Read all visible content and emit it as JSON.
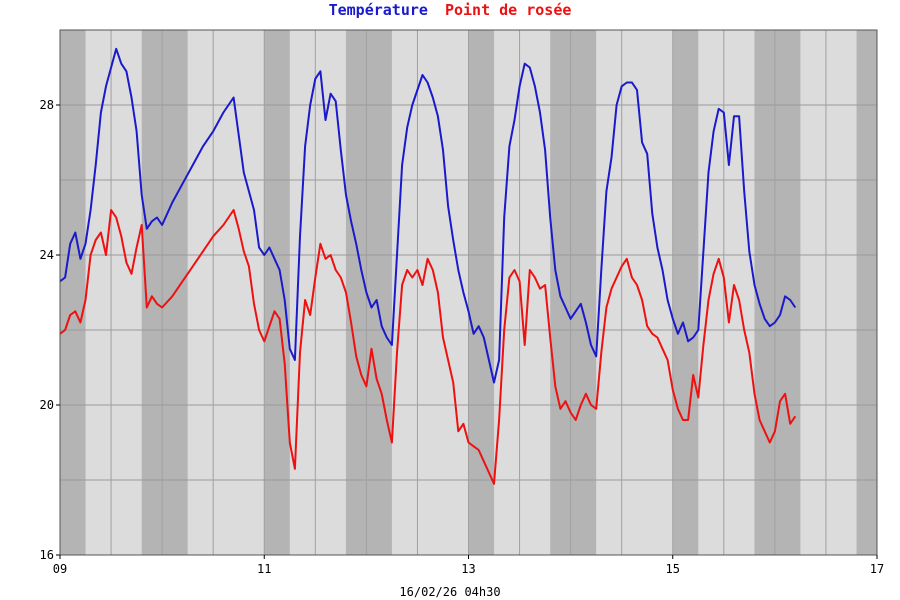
{
  "chart_data": {
    "type": "line",
    "title_parts": [
      {
        "text": "Température",
        "color": "#1a1acc"
      },
      {
        "text": "Point de rosée",
        "color": "#ee1111"
      }
    ],
    "footer": "16/02/26 04h30",
    "xlim": [
      9,
      17
    ],
    "ylim": [
      16,
      30
    ],
    "x_ticks": [
      {
        "value": 9,
        "label": "09"
      },
      {
        "value": 11,
        "label": "11"
      },
      {
        "value": 13,
        "label": "13"
      },
      {
        "value": 15,
        "label": "15"
      },
      {
        "value": 17,
        "label": "17"
      }
    ],
    "y_ticks": [
      {
        "value": 16,
        "label": "16"
      },
      {
        "value": 20,
        "label": "20"
      },
      {
        "value": 24,
        "label": "24"
      },
      {
        "value": 28,
        "label": "28"
      }
    ],
    "grid": true,
    "night_bands": [
      [
        9.0,
        9.25
      ],
      [
        9.8,
        10.25
      ],
      [
        11.0,
        11.25
      ],
      [
        11.8,
        12.25
      ],
      [
        13.0,
        13.25
      ],
      [
        13.8,
        14.25
      ],
      [
        15.0,
        15.25
      ],
      [
        15.8,
        16.25
      ],
      [
        16.8,
        17.0
      ]
    ],
    "series": [
      {
        "color": "#1a1acc",
        "points": [
          [
            9.0,
            23.3
          ],
          [
            9.05,
            23.4
          ],
          [
            9.1,
            24.3
          ],
          [
            9.15,
            24.6
          ],
          [
            9.2,
            23.9
          ],
          [
            9.25,
            24.3
          ],
          [
            9.3,
            25.2
          ],
          [
            9.35,
            26.4
          ],
          [
            9.4,
            27.8
          ],
          [
            9.45,
            28.5
          ],
          [
            9.5,
            29.0
          ],
          [
            9.55,
            29.5
          ],
          [
            9.6,
            29.1
          ],
          [
            9.65,
            28.9
          ],
          [
            9.7,
            28.2
          ],
          [
            9.75,
            27.3
          ],
          [
            9.8,
            25.6
          ],
          [
            9.85,
            24.7
          ],
          [
            9.9,
            24.9
          ],
          [
            9.95,
            25.0
          ],
          [
            10.0,
            24.8
          ],
          [
            10.1,
            25.4
          ],
          [
            10.2,
            25.9
          ],
          [
            10.3,
            26.4
          ],
          [
            10.4,
            26.9
          ],
          [
            10.5,
            27.3
          ],
          [
            10.6,
            27.8
          ],
          [
            10.7,
            28.2
          ],
          [
            10.75,
            27.2
          ],
          [
            10.8,
            26.2
          ],
          [
            10.85,
            25.7
          ],
          [
            10.9,
            25.2
          ],
          [
            10.95,
            24.2
          ],
          [
            11.0,
            24.0
          ],
          [
            11.05,
            24.2
          ],
          [
            11.1,
            23.9
          ],
          [
            11.15,
            23.6
          ],
          [
            11.2,
            22.8
          ],
          [
            11.25,
            21.5
          ],
          [
            11.3,
            21.2
          ],
          [
            11.35,
            24.5
          ],
          [
            11.4,
            26.9
          ],
          [
            11.45,
            28.0
          ],
          [
            11.5,
            28.7
          ],
          [
            11.55,
            28.9
          ],
          [
            11.6,
            27.6
          ],
          [
            11.65,
            28.3
          ],
          [
            11.7,
            28.1
          ],
          [
            11.75,
            26.8
          ],
          [
            11.8,
            25.6
          ],
          [
            11.85,
            24.9
          ],
          [
            11.9,
            24.3
          ],
          [
            11.95,
            23.6
          ],
          [
            12.0,
            23.0
          ],
          [
            12.05,
            22.6
          ],
          [
            12.1,
            22.8
          ],
          [
            12.15,
            22.1
          ],
          [
            12.2,
            21.8
          ],
          [
            12.25,
            21.6
          ],
          [
            12.3,
            24.0
          ],
          [
            12.35,
            26.4
          ],
          [
            12.4,
            27.4
          ],
          [
            12.45,
            28.0
          ],
          [
            12.5,
            28.4
          ],
          [
            12.55,
            28.8
          ],
          [
            12.6,
            28.6
          ],
          [
            12.65,
            28.2
          ],
          [
            12.7,
            27.7
          ],
          [
            12.75,
            26.8
          ],
          [
            12.8,
            25.3
          ],
          [
            12.85,
            24.4
          ],
          [
            12.9,
            23.6
          ],
          [
            12.95,
            23.0
          ],
          [
            13.0,
            22.5
          ],
          [
            13.05,
            21.9
          ],
          [
            13.1,
            22.1
          ],
          [
            13.15,
            21.8
          ],
          [
            13.2,
            21.2
          ],
          [
            13.25,
            20.6
          ],
          [
            13.3,
            21.2
          ],
          [
            13.35,
            25.0
          ],
          [
            13.4,
            26.9
          ],
          [
            13.45,
            27.6
          ],
          [
            13.5,
            28.5
          ],
          [
            13.55,
            29.1
          ],
          [
            13.6,
            29.0
          ],
          [
            13.65,
            28.5
          ],
          [
            13.7,
            27.8
          ],
          [
            13.75,
            26.8
          ],
          [
            13.8,
            25.0
          ],
          [
            13.85,
            23.6
          ],
          [
            13.9,
            22.9
          ],
          [
            13.95,
            22.6
          ],
          [
            14.0,
            22.3
          ],
          [
            14.05,
            22.5
          ],
          [
            14.1,
            22.7
          ],
          [
            14.15,
            22.2
          ],
          [
            14.2,
            21.6
          ],
          [
            14.25,
            21.3
          ],
          [
            14.3,
            23.6
          ],
          [
            14.35,
            25.7
          ],
          [
            14.4,
            26.6
          ],
          [
            14.45,
            28.0
          ],
          [
            14.5,
            28.5
          ],
          [
            14.55,
            28.6
          ],
          [
            14.6,
            28.6
          ],
          [
            14.65,
            28.4
          ],
          [
            14.7,
            27.0
          ],
          [
            14.75,
            26.7
          ],
          [
            14.8,
            25.1
          ],
          [
            14.85,
            24.2
          ],
          [
            14.9,
            23.6
          ],
          [
            14.95,
            22.8
          ],
          [
            15.0,
            22.3
          ],
          [
            15.05,
            21.9
          ],
          [
            15.1,
            22.2
          ],
          [
            15.15,
            21.7
          ],
          [
            15.2,
            21.8
          ],
          [
            15.25,
            22.0
          ],
          [
            15.3,
            24.1
          ],
          [
            15.35,
            26.2
          ],
          [
            15.4,
            27.3
          ],
          [
            15.45,
            27.9
          ],
          [
            15.5,
            27.8
          ],
          [
            15.55,
            26.4
          ],
          [
            15.6,
            27.7
          ],
          [
            15.65,
            27.7
          ],
          [
            15.7,
            25.7
          ],
          [
            15.75,
            24.1
          ],
          [
            15.8,
            23.2
          ],
          [
            15.85,
            22.7
          ],
          [
            15.9,
            22.3
          ],
          [
            15.95,
            22.1
          ],
          [
            16.0,
            22.2
          ],
          [
            16.05,
            22.4
          ],
          [
            16.1,
            22.9
          ],
          [
            16.15,
            22.8
          ],
          [
            16.2,
            22.6
          ]
        ]
      },
      {
        "color": "#ee1111",
        "points": [
          [
            9.0,
            21.9
          ],
          [
            9.05,
            22.0
          ],
          [
            9.1,
            22.4
          ],
          [
            9.15,
            22.5
          ],
          [
            9.2,
            22.2
          ],
          [
            9.25,
            22.8
          ],
          [
            9.3,
            24.0
          ],
          [
            9.35,
            24.4
          ],
          [
            9.4,
            24.6
          ],
          [
            9.45,
            24.0
          ],
          [
            9.5,
            25.2
          ],
          [
            9.55,
            25.0
          ],
          [
            9.6,
            24.5
          ],
          [
            9.65,
            23.8
          ],
          [
            9.7,
            23.5
          ],
          [
            9.75,
            24.2
          ],
          [
            9.8,
            24.8
          ],
          [
            9.85,
            22.6
          ],
          [
            9.9,
            22.9
          ],
          [
            9.95,
            22.7
          ],
          [
            10.0,
            22.6
          ],
          [
            10.1,
            22.9
          ],
          [
            10.2,
            23.3
          ],
          [
            10.3,
            23.7
          ],
          [
            10.4,
            24.1
          ],
          [
            10.5,
            24.5
          ],
          [
            10.6,
            24.8
          ],
          [
            10.7,
            25.2
          ],
          [
            10.75,
            24.7
          ],
          [
            10.8,
            24.1
          ],
          [
            10.85,
            23.7
          ],
          [
            10.9,
            22.7
          ],
          [
            10.95,
            22.0
          ],
          [
            11.0,
            21.7
          ],
          [
            11.05,
            22.1
          ],
          [
            11.1,
            22.5
          ],
          [
            11.15,
            22.3
          ],
          [
            11.2,
            21.1
          ],
          [
            11.25,
            19.0
          ],
          [
            11.3,
            18.3
          ],
          [
            11.35,
            21.4
          ],
          [
            11.4,
            22.8
          ],
          [
            11.45,
            22.4
          ],
          [
            11.5,
            23.4
          ],
          [
            11.55,
            24.3
          ],
          [
            11.6,
            23.9
          ],
          [
            11.65,
            24.0
          ],
          [
            11.7,
            23.6
          ],
          [
            11.75,
            23.4
          ],
          [
            11.8,
            23.0
          ],
          [
            11.85,
            22.2
          ],
          [
            11.9,
            21.3
          ],
          [
            11.95,
            20.8
          ],
          [
            12.0,
            20.5
          ],
          [
            12.05,
            21.5
          ],
          [
            12.1,
            20.7
          ],
          [
            12.15,
            20.3
          ],
          [
            12.2,
            19.6
          ],
          [
            12.25,
            19.0
          ],
          [
            12.3,
            21.4
          ],
          [
            12.35,
            23.2
          ],
          [
            12.4,
            23.6
          ],
          [
            12.45,
            23.4
          ],
          [
            12.5,
            23.6
          ],
          [
            12.55,
            23.2
          ],
          [
            12.6,
            23.9
          ],
          [
            12.65,
            23.6
          ],
          [
            12.7,
            23.0
          ],
          [
            12.75,
            21.8
          ],
          [
            12.8,
            21.2
          ],
          [
            12.85,
            20.6
          ],
          [
            12.9,
            19.3
          ],
          [
            12.95,
            19.5
          ],
          [
            13.0,
            19.0
          ],
          [
            13.05,
            18.9
          ],
          [
            13.1,
            18.8
          ],
          [
            13.15,
            18.5
          ],
          [
            13.2,
            18.2
          ],
          [
            13.25,
            17.9
          ],
          [
            13.3,
            19.6
          ],
          [
            13.35,
            22.0
          ],
          [
            13.4,
            23.4
          ],
          [
            13.45,
            23.6
          ],
          [
            13.5,
            23.3
          ],
          [
            13.55,
            21.6
          ],
          [
            13.6,
            23.6
          ],
          [
            13.65,
            23.4
          ],
          [
            13.7,
            23.1
          ],
          [
            13.75,
            23.2
          ],
          [
            13.8,
            21.8
          ],
          [
            13.85,
            20.5
          ],
          [
            13.9,
            19.9
          ],
          [
            13.95,
            20.1
          ],
          [
            14.0,
            19.8
          ],
          [
            14.05,
            19.6
          ],
          [
            14.1,
            20.0
          ],
          [
            14.15,
            20.3
          ],
          [
            14.2,
            20.0
          ],
          [
            14.25,
            19.9
          ],
          [
            14.3,
            21.4
          ],
          [
            14.35,
            22.6
          ],
          [
            14.4,
            23.1
          ],
          [
            14.45,
            23.4
          ],
          [
            14.5,
            23.7
          ],
          [
            14.55,
            23.9
          ],
          [
            14.6,
            23.4
          ],
          [
            14.65,
            23.2
          ],
          [
            14.7,
            22.8
          ],
          [
            14.75,
            22.1
          ],
          [
            14.8,
            21.9
          ],
          [
            14.85,
            21.8
          ],
          [
            14.9,
            21.5
          ],
          [
            14.95,
            21.2
          ],
          [
            15.0,
            20.4
          ],
          [
            15.05,
            19.9
          ],
          [
            15.1,
            19.6
          ],
          [
            15.15,
            19.6
          ],
          [
            15.2,
            20.8
          ],
          [
            15.25,
            20.2
          ],
          [
            15.3,
            21.6
          ],
          [
            15.35,
            22.8
          ],
          [
            15.4,
            23.5
          ],
          [
            15.45,
            23.9
          ],
          [
            15.5,
            23.4
          ],
          [
            15.55,
            22.2
          ],
          [
            15.6,
            23.2
          ],
          [
            15.65,
            22.8
          ],
          [
            15.7,
            22.0
          ],
          [
            15.75,
            21.4
          ],
          [
            15.8,
            20.3
          ],
          [
            15.85,
            19.6
          ],
          [
            15.9,
            19.3
          ],
          [
            15.95,
            19.0
          ],
          [
            16.0,
            19.3
          ],
          [
            16.05,
            20.1
          ],
          [
            16.1,
            20.3
          ],
          [
            16.15,
            19.5
          ],
          [
            16.2,
            19.7
          ]
        ]
      }
    ]
  }
}
